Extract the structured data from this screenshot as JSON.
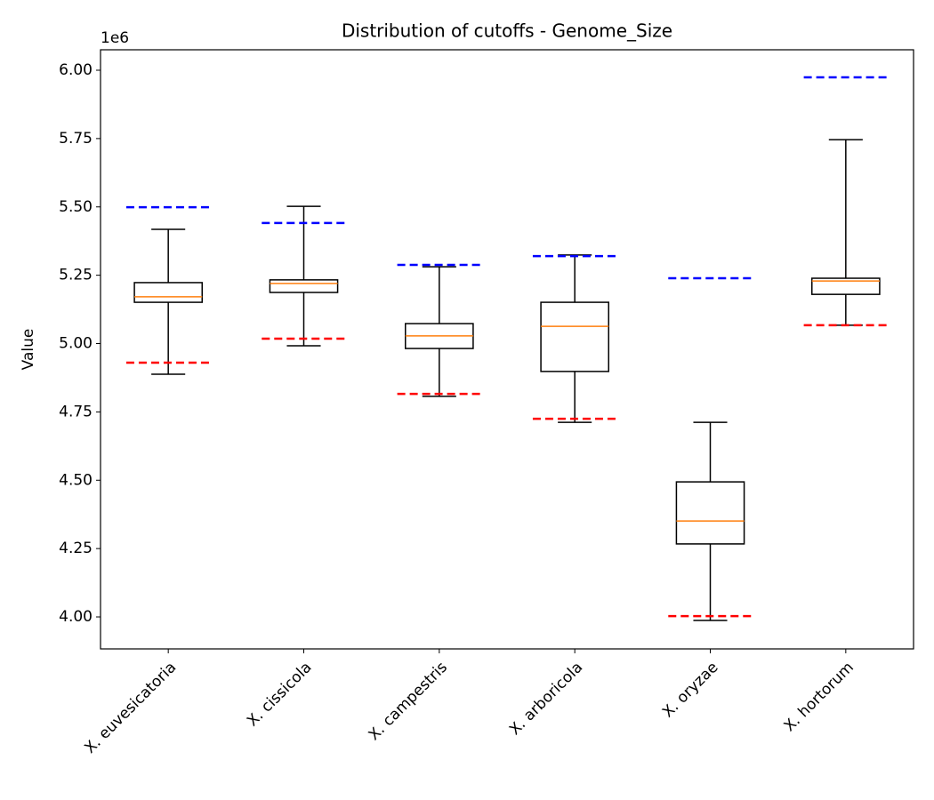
{
  "chart_data": {
    "type": "box",
    "title": "Distribution of cutoffs - Genome_Size",
    "y_label": "Value",
    "offset_text": "1e6",
    "categories": [
      "X. euvesicatoria",
      "X. cissicola",
      "X. campestris",
      "X. arboricola",
      "X. oryzae",
      "X. hortorum"
    ],
    "boxes": [
      {
        "whisker_low": 4888000,
        "q1": 5151000,
        "median": 5171000,
        "q3": 5223000,
        "whisker_high": 5418000
      },
      {
        "whisker_low": 4992000,
        "q1": 5187000,
        "median": 5220000,
        "q3": 5233000,
        "whisker_high": 5502000
      },
      {
        "whisker_low": 4807000,
        "q1": 4982000,
        "median": 5028000,
        "q3": 5073000,
        "whisker_high": 5281000
      },
      {
        "whisker_low": 4712000,
        "q1": 4898000,
        "median": 5063000,
        "q3": 5151000,
        "whisker_high": 5324000
      },
      {
        "whisker_low": 3987000,
        "q1": 4267000,
        "median": 4351000,
        "q3": 4494000,
        "whisker_high": 4712000
      },
      {
        "whisker_low": 5067000,
        "q1": 5180000,
        "median": 5229000,
        "q3": 5239000,
        "whisker_high": 5746000
      }
    ],
    "upper_cutoffs": [
      5499000,
      5441000,
      5288000,
      5320000,
      5239000,
      5974000
    ],
    "lower_cutoffs": [
      4930000,
      5018000,
      4816000,
      4725000,
      4003000,
      5067000
    ],
    "box_color": "#000000",
    "median_color": "#ff7f0e",
    "upper_color": "#0000ff",
    "lower_color": "#ff0000",
    "ylim": [
      3883000,
      6074800
    ],
    "yticks": [
      {
        "value": 4000000,
        "label": "4.00"
      },
      {
        "value": 4250000,
        "label": "4.25"
      },
      {
        "value": 4500000,
        "label": "4.50"
      },
      {
        "value": 4750000,
        "label": "4.75"
      },
      {
        "value": 5000000,
        "label": "5.00"
      },
      {
        "value": 5250000,
        "label": "5.25"
      },
      {
        "value": 5500000,
        "label": "5.50"
      },
      {
        "value": 5750000,
        "label": "5.75"
      },
      {
        "value": 6000000,
        "label": "6.00"
      }
    ],
    "grid": false
  }
}
